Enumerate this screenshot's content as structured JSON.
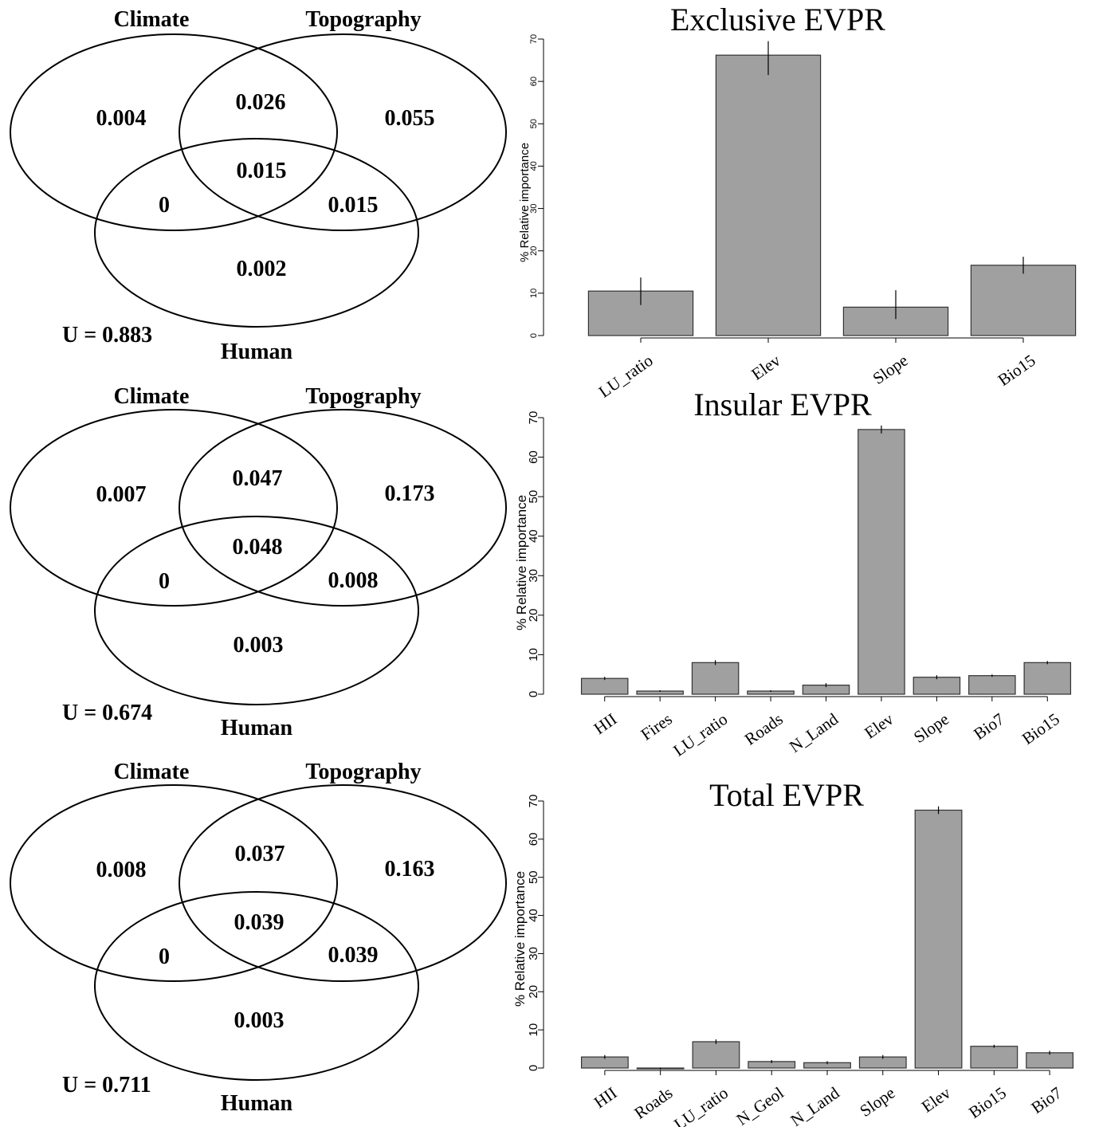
{
  "venn_panels": [
    {
      "labels": {
        "climate": "Climate",
        "topography": "Topography",
        "human": "Human"
      },
      "regions": {
        "climate_only": "0.004",
        "climate_topography": "0.026",
        "topography_only": "0.055",
        "all_three": "0.015",
        "climate_human": "0",
        "topography_human": "0.015",
        "human_only": "0.002"
      },
      "unexplained": "U = 0.883"
    },
    {
      "labels": {
        "climate": "Climate",
        "topography": "Topography",
        "human": "Human"
      },
      "regions": {
        "climate_only": "0.007",
        "climate_topography": "0.047",
        "topography_only": "0.173",
        "all_three": "0.048",
        "climate_human": "0",
        "topography_human": "0.008",
        "human_only": "0.003"
      },
      "unexplained": "U = 0.674"
    },
    {
      "labels": {
        "climate": "Climate",
        "topography": "Topography",
        "human": "Human"
      },
      "regions": {
        "climate_only": "0.008",
        "climate_topography": "0.037",
        "topography_only": "0.163",
        "all_three": "0.039",
        "climate_human": "0",
        "topography_human": "0.039",
        "human_only": "0.003"
      },
      "unexplained": "U = 0.711"
    }
  ],
  "chart_data": [
    {
      "type": "bar",
      "title": "Exclusive EVPR",
      "ylabel": "% Relative importance",
      "ylim": [
        0,
        70
      ],
      "yticks": [
        0,
        10,
        20,
        30,
        40,
        50,
        60,
        70
      ],
      "categories": [
        "LU_ratio",
        "Elev",
        "Slope",
        "Bio15"
      ],
      "values": [
        10.5,
        66.2,
        6.7,
        16.6
      ],
      "error_low": [
        7.2,
        61.5,
        3.9,
        14.6
      ],
      "error_high": [
        13.7,
        69.5,
        10.7,
        18.6
      ],
      "bar_color": "#a0a0a0"
    },
    {
      "type": "bar",
      "title": "Insular EVPR",
      "ylabel": "% Relative importance",
      "ylim": [
        0,
        70
      ],
      "yticks": [
        0,
        10,
        20,
        30,
        40,
        50,
        60,
        70
      ],
      "categories": [
        "HII",
        "Fires",
        "LU_ratio",
        "Roads",
        "N_Land",
        "Elev",
        "Slope",
        "Bio7",
        "Bio15"
      ],
      "values": [
        4.0,
        0.8,
        8.0,
        0.8,
        2.3,
        67.0,
        4.3,
        4.7,
        8.0
      ],
      "error_low": [
        3.6,
        0.6,
        7.4,
        0.6,
        1.8,
        66.0,
        3.8,
        4.4,
        7.6
      ],
      "error_high": [
        4.4,
        1.0,
        8.6,
        1.0,
        2.8,
        68.0,
        4.8,
        5.0,
        8.4
      ],
      "bar_color": "#a0a0a0"
    },
    {
      "type": "bar",
      "title": "Total EVPR",
      "ylabel": "% Relative importance",
      "ylim": [
        0,
        70
      ],
      "yticks": [
        0,
        10,
        20,
        30,
        40,
        50,
        60,
        70
      ],
      "categories": [
        "HII",
        "Roads",
        "LU_ratio",
        "N_Geol",
        "N_Land",
        "Slope",
        "Elev",
        "Bio15",
        "Bio7"
      ],
      "values": [
        2.9,
        -0.2,
        6.9,
        1.7,
        1.4,
        2.9,
        67.6,
        5.7,
        4.0
      ],
      "error_low": [
        2.4,
        -0.4,
        6.3,
        1.3,
        1.0,
        2.4,
        66.6,
        5.3,
        3.5
      ],
      "error_high": [
        3.4,
        0.1,
        7.5,
        2.1,
        1.8,
        3.4,
        68.6,
        6.1,
        4.5
      ],
      "bar_color": "#a0a0a0"
    }
  ]
}
